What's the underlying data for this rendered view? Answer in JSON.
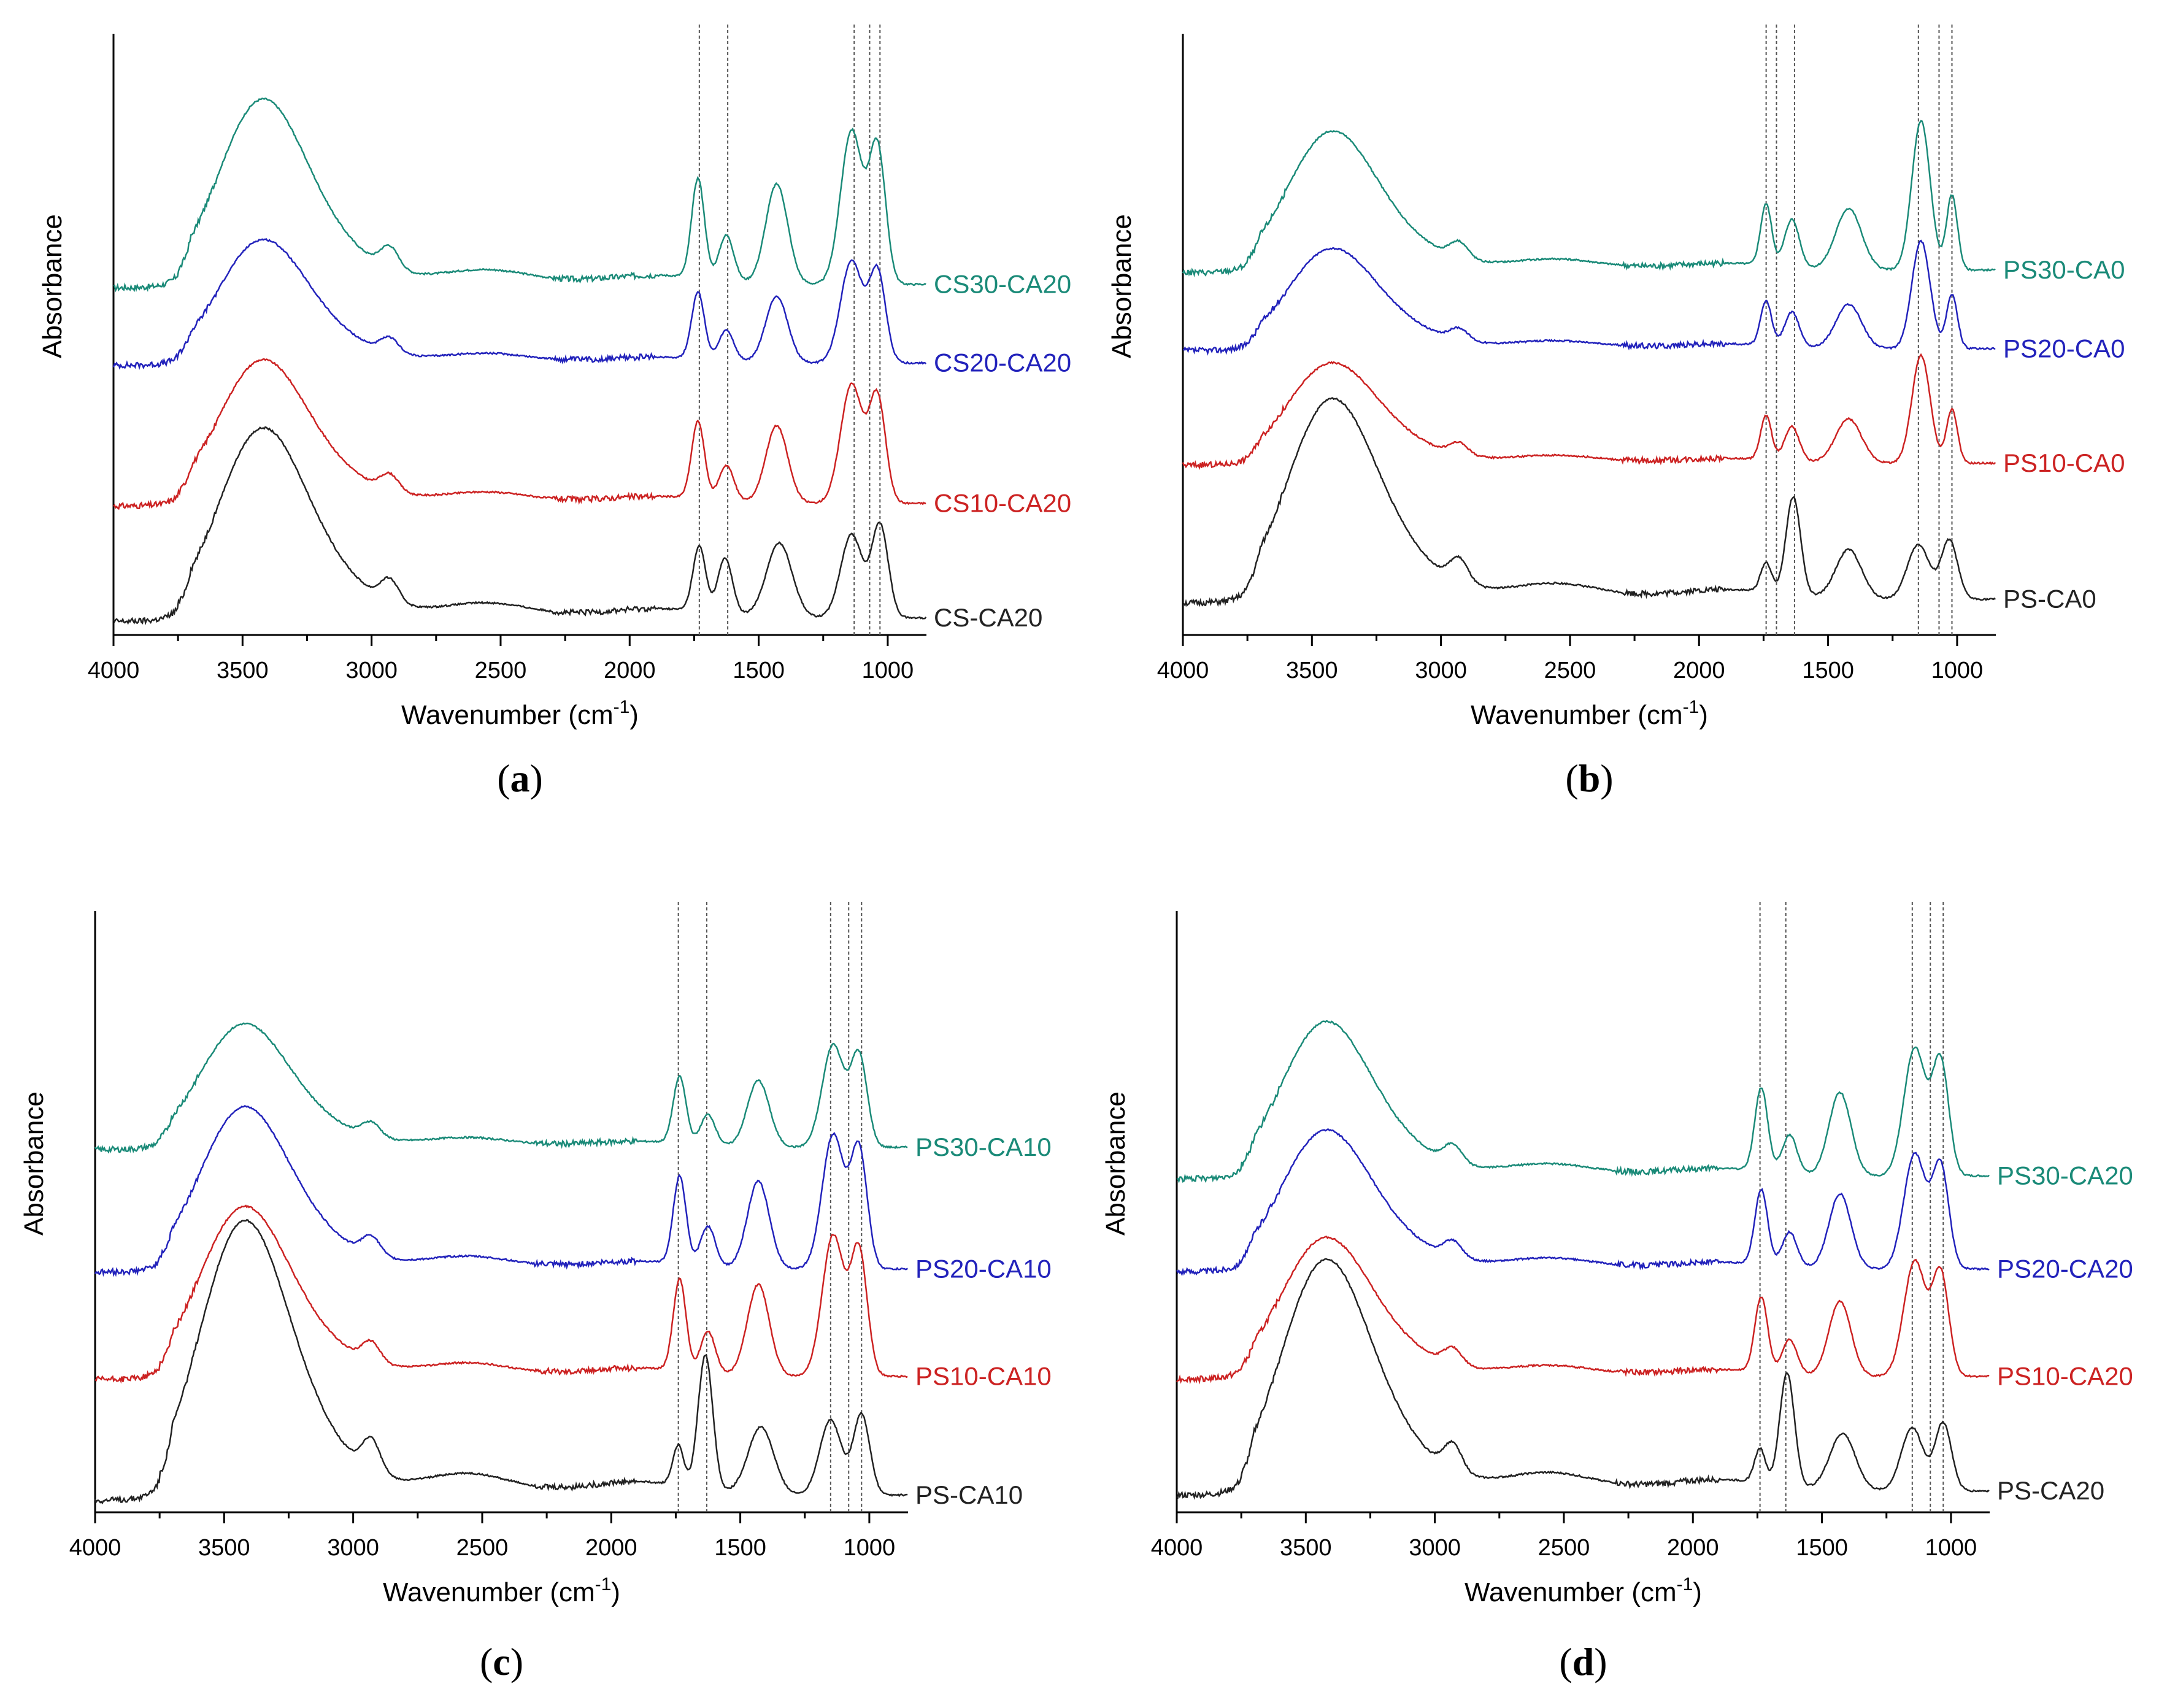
{
  "colors": {
    "axis": "#000000",
    "ref_line": "#555555",
    "teal": "#1a8a78",
    "blue": "#2222bb",
    "red": "#cc2222",
    "black": "#222222"
  },
  "chart_data": [
    {
      "type": "line",
      "panel_label": "a",
      "panel_letter": "a",
      "xlabel": "Wavenumber (cm",
      "xlabel_sup": "-1",
      "xlabel_end": ")",
      "ylabel": "Absorbance",
      "xlim": [
        4000,
        850
      ],
      "x_ticks": [
        4000,
        3500,
        3000,
        2500,
        2000,
        1500,
        1000
      ],
      "x_tick_labels": [
        "4000",
        "3500",
        "3000",
        "2500",
        "2000",
        "1500",
        "1000"
      ],
      "ref_lines": [
        1730,
        1620,
        1130,
        1070,
        1030
      ],
      "series": [
        {
          "name": "CS30-CA20",
          "color": "teal",
          "baseline": 2.45,
          "peak": 3.65,
          "features": "ca"
        },
        {
          "name": "CS20-CA20",
          "color": "blue",
          "baseline": 1.9,
          "peak": 2.7,
          "features": "ca"
        },
        {
          "name": "CS10-CA20",
          "color": "red",
          "baseline": 0.92,
          "peak": 1.85,
          "features": "ca"
        },
        {
          "name": "CS-CA20",
          "color": "black",
          "baseline": 0.12,
          "peak": 1.35,
          "features": "ca_base"
        }
      ]
    },
    {
      "type": "line",
      "panel_label": "b",
      "panel_letter": "b",
      "xlabel": "Wavenumber (cm",
      "xlabel_sup": "-1",
      "xlabel_end": ")",
      "ylabel": "Absorbance",
      "xlim": [
        4000,
        850
      ],
      "x_ticks": [
        4000,
        3500,
        3000,
        2500,
        2000,
        1500,
        1000
      ],
      "x_tick_labels": [
        "4000",
        "3500",
        "3000",
        "2500",
        "2000",
        "1500",
        "1000"
      ],
      "ref_lines": [
        1740,
        1700,
        1630,
        1150,
        1070,
        1020
      ],
      "series": [
        {
          "name": "PS30-CA0",
          "color": "teal",
          "baseline": 2.55,
          "peak": 3.45,
          "features": "ps"
        },
        {
          "name": "PS20-CA0",
          "color": "blue",
          "baseline": 2.0,
          "peak": 2.65,
          "features": "ps"
        },
        {
          "name": "PS10-CA0",
          "color": "red",
          "baseline": 1.2,
          "peak": 1.85,
          "features": "ps"
        },
        {
          "name": "PS-CA0",
          "color": "black",
          "baseline": 0.25,
          "peak": 1.55,
          "features": "ps_base"
        }
      ]
    },
    {
      "type": "line",
      "panel_label": "c",
      "panel_letter": "c",
      "xlabel": "Wavenumber (cm",
      "xlabel_sup": "-1",
      "xlabel_end": ")",
      "ylabel": "Absorbance",
      "xlim": [
        4000,
        850
      ],
      "x_ticks": [
        4000,
        3500,
        3000,
        2500,
        2000,
        1500,
        1000
      ],
      "x_tick_labels": [
        "4000",
        "3500",
        "3000",
        "2500",
        "2000",
        "1500",
        "1000"
      ],
      "ref_lines": [
        1740,
        1630,
        1150,
        1080,
        1030
      ],
      "series": [
        {
          "name": "PS30-CA10",
          "color": "teal",
          "baseline": 2.55,
          "peak": 3.35,
          "features": "ps_ca"
        },
        {
          "name": "PS20-CA10",
          "color": "blue",
          "baseline": 1.7,
          "peak": 2.75,
          "features": "ps_ca"
        },
        {
          "name": "PS10-CA10",
          "color": "red",
          "baseline": 0.95,
          "peak": 2.05,
          "features": "ps_ca"
        },
        {
          "name": "PS-CA10",
          "color": "black",
          "baseline": 0.12,
          "peak": 1.9,
          "features": "ps_base"
        }
      ]
    },
    {
      "type": "line",
      "panel_label": "d",
      "panel_letter": "d",
      "xlabel": "Wavenumber (cm",
      "xlabel_sup": "-1",
      "xlabel_end": ")",
      "ylabel": "Absorbance",
      "xlim": [
        4000,
        850
      ],
      "x_ticks": [
        4000,
        3500,
        3000,
        2500,
        2000,
        1500,
        1000
      ],
      "x_tick_labels": [
        "4000",
        "3500",
        "3000",
        "2500",
        "2000",
        "1500",
        "1000"
      ],
      "ref_lines": [
        1740,
        1640,
        1150,
        1080,
        1030
      ],
      "series": [
        {
          "name": "PS30-CA20",
          "color": "teal",
          "baseline": 2.35,
          "peak": 3.35,
          "features": "ps_ca"
        },
        {
          "name": "PS20-CA20",
          "color": "blue",
          "baseline": 1.7,
          "peak": 2.6,
          "features": "ps_ca"
        },
        {
          "name": "PS10-CA20",
          "color": "red",
          "baseline": 0.95,
          "peak": 1.85,
          "features": "ps_ca"
        },
        {
          "name": "PS-CA20",
          "color": "black",
          "baseline": 0.15,
          "peak": 1.65,
          "features": "ps_base"
        }
      ]
    }
  ]
}
